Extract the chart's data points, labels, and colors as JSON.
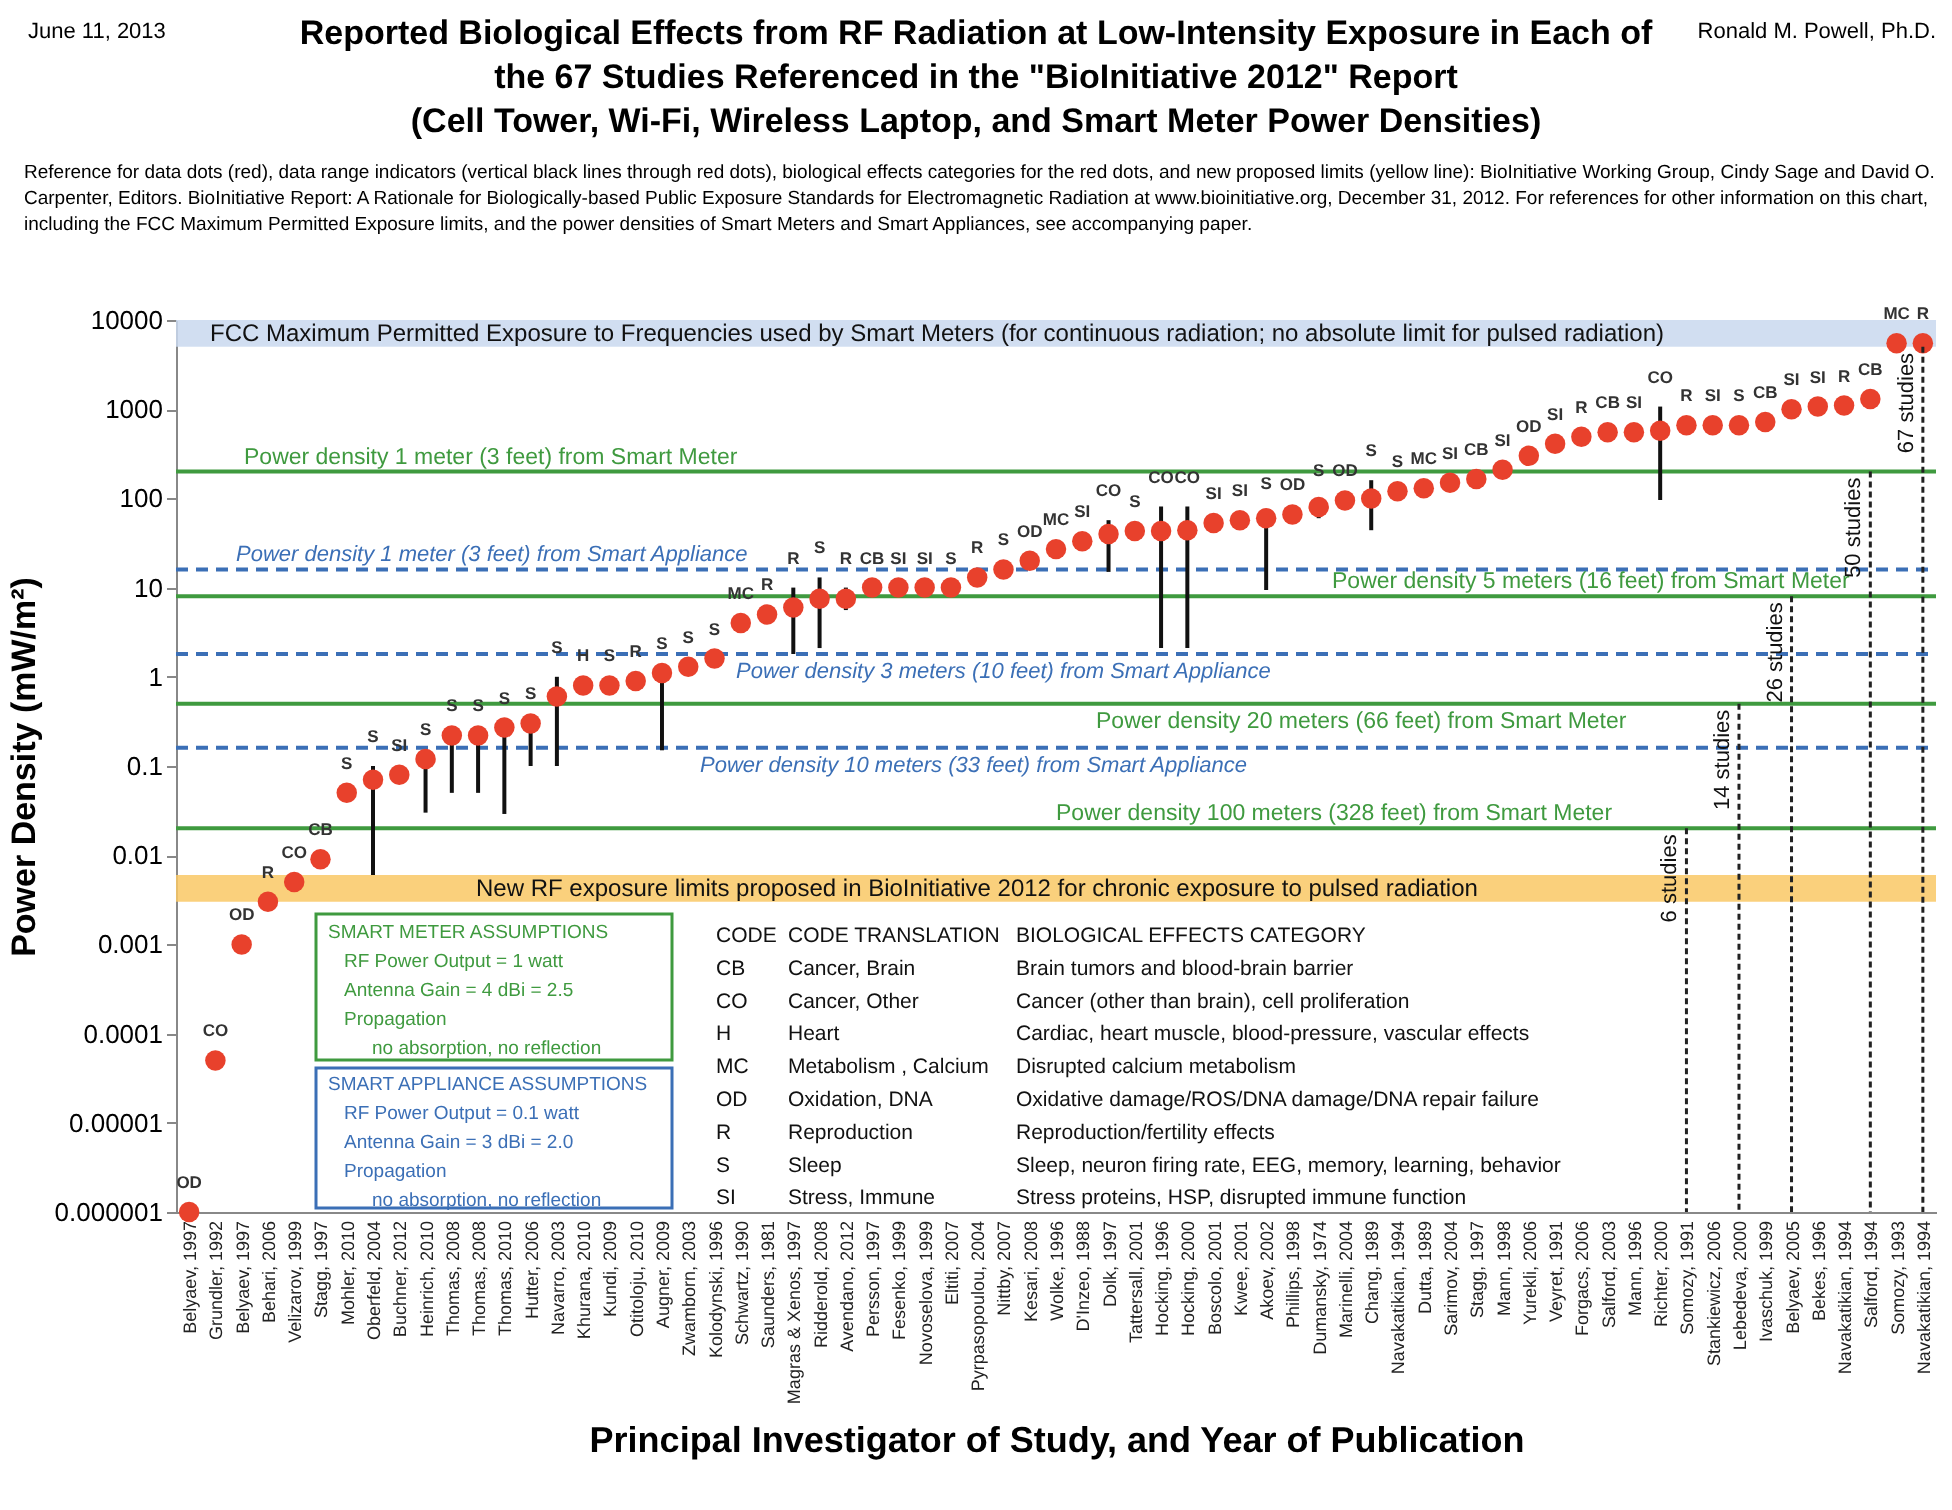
{
  "chart_data": {
    "type": "scatter",
    "title": "Reported Biological Effects from RF Radiation at Low-Intensity Exposure in Each of the 67 Studies Referenced in the \"BioInitiative 2012\" Report",
    "subtitle": "(Cell Tower, Wi-Fi, Wireless Laptop, and Smart Meter Power Densities)",
    "xlabel": "Principal Investigator of Study, and Year of Publication",
    "ylabel": "Power Density (mW/m²)",
    "categories": [
      "Belyaev, 1997",
      "Grundler, 1992",
      "Belyaev, 1997",
      "Behari, 2006",
      "Velizarov, 1999",
      "Stagg, 1997",
      "Mohler, 2010",
      "Oberfeld, 2004",
      "Buchner, 2012",
      "Heinrich, 2010",
      "Thomas, 2008",
      "Thomas, 2008",
      "Thomas, 2010",
      "Hutter, 2006",
      "Navarro, 2003",
      "Khurana, 2010",
      "Kundi, 2009",
      "Otitoloju, 2010",
      "Augner, 2009",
      "Zwamborn, 2003",
      "Kolodynski, 1996",
      "Schwartz, 1990",
      "Saunders, 1981",
      "Magras & Xenos, 1997",
      "Ridderold, 2008",
      "Avendano, 2012",
      "Persson, 1997",
      "Fesenko, 1999",
      "Novoselova, 1999",
      "Eltiti, 2007",
      "Pyrpasopoulou, 2004",
      "Nittby, 2007",
      "Kesari, 2008",
      "Wolke, 1996",
      "D'Inzeo, 1988",
      "Dolk, 1997",
      "Tattersall, 2001",
      "Hocking, 1996",
      "Hocking, 2000",
      "Boscolo, 2001",
      "Kwee, 2001",
      "Akoev, 2002",
      "Phillips, 1998",
      "Dumansky, 1974",
      "Marinelli, 2004",
      "Chang, 1989",
      "Navakatikian, 1994",
      "Dutta, 1989",
      "Sarimov, 2004",
      "Stagg, 1997",
      "Mann, 1998",
      "Yurekli, 2006",
      "Veyret, 1991",
      "Forgacs, 2006",
      "Salford, 2003",
      "Mann, 1996",
      "Richter, 2000",
      "Somozy, 1991",
      "Stankiewicz, 2006",
      "Lebedeva, 2000",
      "Ivaschuk, 1999",
      "Belyaev, 2005",
      "Bekes, 1996",
      "Navakatikian, 1994",
      "Salford, 1994",
      "Somozy, 1993",
      "Navakatikian, 1994"
    ],
    "values": [
      1e-06,
      5e-05,
      0.001,
      0.003,
      0.005,
      0.009,
      0.05,
      0.07,
      0.08,
      0.12,
      0.22,
      0.22,
      0.27,
      0.3,
      0.6,
      0.8,
      0.8,
      0.9,
      1.1,
      1.3,
      1.6,
      4,
      5,
      6,
      7.5,
      7.5,
      10,
      10,
      10,
      10,
      13,
      16,
      20,
      27,
      33,
      40,
      43,
      43,
      44,
      53,
      57,
      60,
      66,
      80,
      95,
      100,
      120,
      130,
      150,
      165,
      210,
      300,
      410,
      490,
      550,
      550,
      575,
      660,
      660,
      660,
      720,
      1000,
      1070,
      1100,
      1300,
      5500,
      5500
    ],
    "errors": [
      null,
      null,
      null,
      null,
      null,
      null,
      null,
      [
        0.006,
        0.1
      ],
      null,
      [
        0.03,
        0.12
      ],
      [
        0.05,
        0.22
      ],
      [
        0.05,
        0.22
      ],
      [
        0.029,
        0.27
      ],
      [
        0.1,
        0.3
      ],
      [
        0.1,
        1
      ],
      null,
      null,
      null,
      [
        0.15,
        1.1
      ],
      null,
      null,
      null,
      null,
      [
        1.8,
        10
      ],
      [
        2.1,
        13
      ],
      [
        5.6,
        10
      ],
      null,
      null,
      null,
      null,
      null,
      null,
      null,
      null,
      null,
      [
        15,
        57
      ],
      null,
      [
        2.1,
        81
      ],
      [
        2.1,
        81
      ],
      null,
      null,
      [
        9.4,
        68
      ],
      null,
      [
        60,
        95
      ],
      null,
      [
        44,
        160
      ],
      null,
      null,
      null,
      null,
      null,
      null,
      null,
      null,
      null,
      null,
      [
        96,
        1070
      ],
      null,
      null,
      null,
      null,
      null,
      null,
      null,
      null,
      null,
      null
    ],
    "value_labels": [
      "OD",
      "CO",
      "OD",
      "R",
      "CO",
      "CB",
      "S",
      "S",
      "SI",
      "S",
      "S",
      "S",
      "S",
      "S",
      "S",
      "H",
      "S",
      "R",
      "S",
      "S",
      "S",
      "MC",
      "R",
      "R",
      "S",
      "R",
      "CB",
      "SI",
      "SI",
      "S",
      "R",
      "S",
      "OD",
      "MC",
      "SI",
      "CO",
      "S",
      "CO",
      "CO",
      "SI",
      "SI",
      "S",
      "OD",
      "S",
      "OD",
      "S",
      "S",
      "MC",
      "SI",
      "CB",
      "SI",
      "OD",
      "SI",
      "R",
      "CB",
      "SI",
      "CO",
      "R",
      "SI",
      "S",
      "CB",
      "SI",
      "SI",
      "R",
      "CB",
      "MC",
      "R"
    ],
    "color": "#e8412c",
    "marker": "circle",
    "log": true,
    "ylim": [
      1e-06,
      10000
    ],
    "yticks": [
      {
        "value": 1e-06,
        "label": "0.000001"
      },
      {
        "value": 1e-05,
        "label": "0.00001"
      },
      {
        "value": 0.0001,
        "label": "0.0001"
      },
      {
        "value": 0.001,
        "label": "0.001"
      },
      {
        "value": 0.01,
        "label": "0.01"
      },
      {
        "value": 0.1,
        "label": "0.1"
      },
      1,
      10,
      100,
      1000,
      10000
    ],
    "ref_lines": [
      {
        "axis": "y",
        "value": 200,
        "label": "Power density 1 meter (3 feet) from Smart Meter",
        "color": "#3f9a3f",
        "line_style": "solid"
      },
      {
        "axis": "y",
        "value": 8,
        "label": "Power density 5 meters (16 feet) from Smart Meter",
        "color": "#3f9a3f",
        "line_style": "solid"
      },
      {
        "axis": "y",
        "value": 0.5,
        "label": "Power density 20 meters (66 feet) from Smart Meter",
        "color": "#3f9a3f",
        "line_style": "solid"
      },
      {
        "axis": "y",
        "value": 0.02,
        "label": "Power density 100 meters (328 feet) from Smart Meter",
        "color": "#3f9a3f",
        "line_style": "solid"
      },
      {
        "axis": "y",
        "value": 16,
        "label": "Power density 1 meter (3 feet) from Smart Appliance",
        "color": "#3b6fb6",
        "line_style": "dashed"
      },
      {
        "axis": "y",
        "value": 1.8,
        "label": "Power density 3 meters (10 feet) from Smart Appliance",
        "color": "#3b6fb6",
        "line_style": "dashed"
      },
      {
        "axis": "y",
        "value": 0.16,
        "label": "Power density 10 meters (33 feet) from Smart Appliance",
        "color": "#3b6fb6",
        "line_style": "dashed"
      }
    ],
    "bands": [
      {
        "axis": "y",
        "from": 5000,
        "to": 10000,
        "label": "FCC Maximum Permitted Exposure to Frequencies used by Smart Meters (for continuous radiation; no absolute limit for pulsed radiation)",
        "color": "#c9d8ee"
      },
      {
        "axis": "y",
        "from": 0.003,
        "to": 0.006,
        "label": "New RF exposure limits proposed in BioInitiative 2012 for chronic exposure to pulsed radiation",
        "color": "#f9c865"
      }
    ],
    "annotations": [
      "June 11, 2013",
      "Ronald M. Powell, Ph.D.",
      "Reference for data dots (red), data range indicators (vertical black lines through red dots), biological effects categories for the red dots, and new proposed limits (yellow line): BioInitiative Working Group, Cindy Sage and David O. Carpenter, Editors. BioInitiative Report: A Rationale for Biologically-based Public Exposure Standards for Electromagnetic Radiation at www.bioinitiative.org, December 31, 2012. For references for other information on this chart, including the FCC Maximum Permitted Exposure limits, and the power densities of Smart Meters and Smart Appliances, see accompanying paper.",
      "SMART METER ASSUMPTIONS",
      "RF Power Output = 1 watt",
      "Antenna Gain = 4 dBi = 2.5",
      "Propagation",
      "no absorption, no reflection",
      "SMART APPLIANCE ASSUMPTIONS",
      "RF Power Output = 0.1 watt",
      "Antenna Gain = 3 dBi = 2.0",
      "Propagation",
      "no absorption, no reflection",
      "CODE",
      "CODE TRANSLATION",
      "BIOLOGICAL EFFECTS CATEGORY",
      "CB",
      "Cancer, Brain",
      "Brain tumors and blood-brain barrier",
      "CO",
      "Cancer, Other",
      "Cancer (other than brain), cell proliferation",
      "H",
      "Heart",
      "Cardiac, heart muscle, blood-pressure, vascular effects",
      "MC",
      "Metabolism , Calcium",
      "Disrupted calcium metabolism",
      "OD",
      "Oxidation, DNA",
      "Oxidative damage/ROS/DNA damage/DNA repair failure",
      "R",
      "Reproduction",
      "Reproduction/fertility effects",
      "S",
      "Sleep",
      "Sleep, neuron firing rate, EEG, memory, learning, behavior",
      "SI",
      "Stress, Immune",
      "Stress proteins, HSP, disrupted immune function",
      {
        "text": "6 studies",
        "x": "Somozy, 1991",
        "y": 0.02
      },
      {
        "text": "14 studies",
        "x": "Lebedeva, 2000",
        "y": 0.5
      },
      {
        "text": "26 studies",
        "x": "Belyaev, 2005",
        "y": 8
      },
      {
        "text": "50 studies",
        "x": "Salford, 1994",
        "y": 200
      },
      {
        "text": "67 studies",
        "y": 5000
      }
    ]
  }
}
